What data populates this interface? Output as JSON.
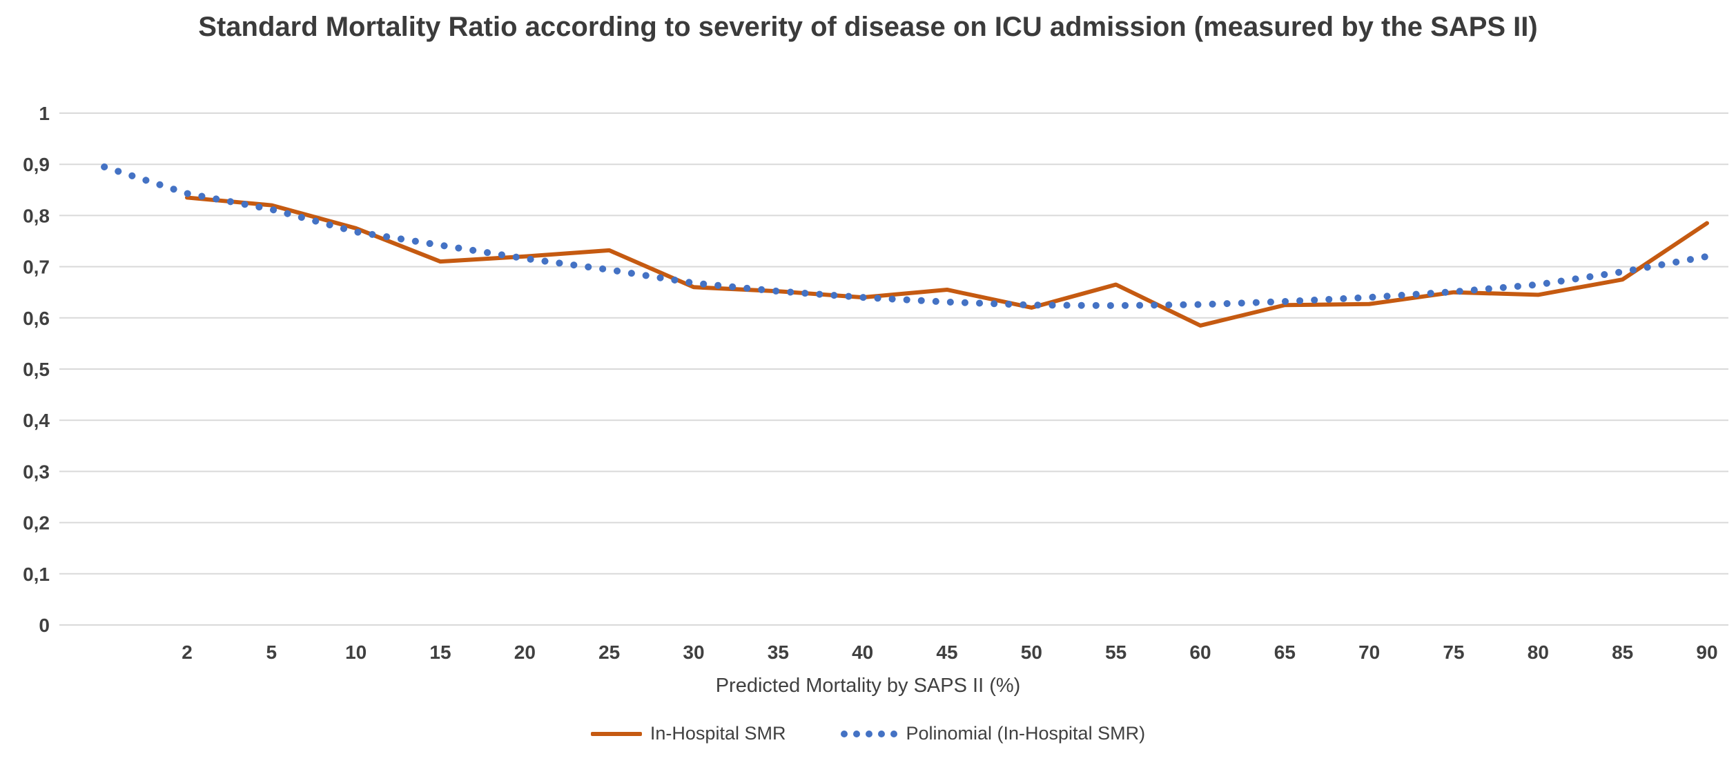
{
  "chart_data": {
    "type": "line",
    "title": "Standard Mortality Ratio according to severity of disease on ICU admission (measured by the SAPS II)",
    "xlabel": "Predicted Mortality by SAPS II (%)",
    "ylabel": "",
    "ylim": [
      0,
      1
    ],
    "yticks": [
      0,
      0.1,
      0.2,
      0.3,
      0.4,
      0.5,
      0.6,
      0.7,
      0.8,
      0.9,
      1
    ],
    "ytick_labels": [
      "0",
      "0,1",
      "0,2",
      "0,3",
      "0,4",
      "0,5",
      "0,6",
      "0,7",
      "0,8",
      "0,9",
      "1"
    ],
    "categories": [
      "2",
      "5",
      "10",
      "15",
      "20",
      "25",
      "30",
      "35",
      "40",
      "45",
      "50",
      "55",
      "60",
      "65",
      "70",
      "75",
      "80",
      "85",
      "90"
    ],
    "grid": true,
    "legend_position": "bottom",
    "series": [
      {
        "name": "In-Hospital SMR",
        "style": "solid",
        "color": "#C55A11",
        "values": [
          0.835,
          0.82,
          0.775,
          0.71,
          0.72,
          0.732,
          0.66,
          0.652,
          0.64,
          0.655,
          0.62,
          0.665,
          0.585,
          0.625,
          0.627,
          0.65,
          0.645,
          0.675,
          0.785
        ]
      },
      {
        "name": "Polinomial (In-Hospital SMR)",
        "style": "dotted",
        "color": "#4472C4",
        "lead_value": 0.895,
        "values": [
          0.843,
          0.812,
          0.768,
          0.742,
          0.716,
          0.694,
          0.668,
          0.652,
          0.64,
          0.631,
          0.625,
          0.624,
          0.626,
          0.632,
          0.64,
          0.651,
          0.665,
          0.69,
          0.72
        ]
      }
    ]
  }
}
